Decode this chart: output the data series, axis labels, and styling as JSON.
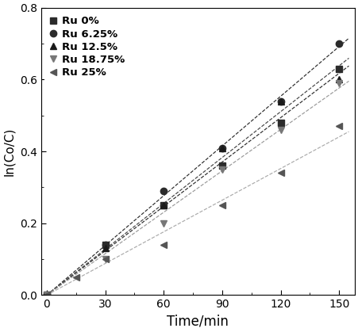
{
  "title": "",
  "xlabel": "Time/min",
  "ylabel": "ln(Co/C)",
  "xlim": [
    -3,
    158
  ],
  "ylim": [
    0.0,
    0.8
  ],
  "xticks": [
    0,
    30,
    60,
    90,
    120,
    150
  ],
  "yticks": [
    0.0,
    0.2,
    0.4,
    0.6,
    0.8
  ],
  "series": [
    {
      "label": "Ru 0%",
      "marker": "s",
      "color": "#2b2b2b",
      "line_color": "#2b2b2b",
      "x": [
        0,
        30,
        60,
        90,
        120,
        150
      ],
      "y": [
        0.0,
        0.14,
        0.25,
        0.36,
        0.48,
        0.63
      ],
      "markersize": 6
    },
    {
      "label": "Ru 6.25%",
      "marker": "o",
      "color": "#2b2b2b",
      "line_color": "#2b2b2b",
      "x": [
        0,
        30,
        60,
        90,
        120,
        150
      ],
      "y": [
        0.0,
        0.14,
        0.29,
        0.41,
        0.54,
        0.7
      ],
      "markersize": 6
    },
    {
      "label": "Ru 12.5%",
      "marker": "^",
      "color": "#1a1a1a",
      "line_color": "#444444",
      "x": [
        0,
        30,
        60,
        90,
        120,
        150
      ],
      "y": [
        0.0,
        0.13,
        0.25,
        0.41,
        0.54,
        0.6
      ],
      "markersize": 6
    },
    {
      "label": "Ru 18.75%",
      "marker": "v",
      "color": "#777777",
      "line_color": "#999999",
      "x": [
        0,
        30,
        60,
        90,
        120,
        150
      ],
      "y": [
        0.0,
        0.1,
        0.2,
        0.35,
        0.46,
        0.59
      ],
      "markersize": 6
    },
    {
      "label": "Ru 25%",
      "marker": "<",
      "color": "#555555",
      "line_color": "#aaaaaa",
      "x": [
        0,
        15,
        30,
        60,
        90,
        120,
        150
      ],
      "y": [
        0.0,
        0.05,
        0.1,
        0.14,
        0.25,
        0.34,
        0.47
      ],
      "markersize": 6
    }
  ],
  "figsize": [
    4.51,
    4.19
  ],
  "dpi": 100
}
